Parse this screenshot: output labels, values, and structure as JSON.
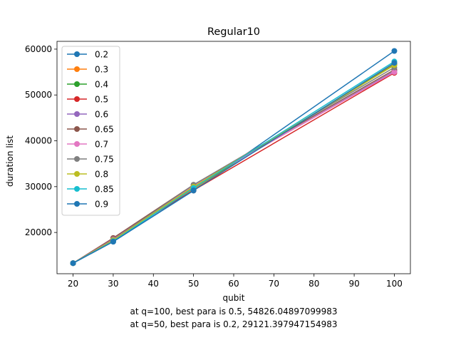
{
  "chart_data": {
    "type": "line",
    "title": "Regular10",
    "xlabel": "qubit",
    "ylabel": "duration list",
    "x": [
      20,
      30,
      50,
      100
    ],
    "xlim": [
      16,
      104
    ],
    "ylim": [
      11000,
      61700
    ],
    "xticks": [
      20,
      30,
      40,
      50,
      60,
      70,
      80,
      90,
      100
    ],
    "yticks": [
      20000,
      30000,
      40000,
      50000,
      60000
    ],
    "grid": false,
    "legend_position": "top-left",
    "series": [
      {
        "name": "0.2",
        "color": "#1f77b4",
        "values": [
          13300,
          18000,
          29121,
          59600
        ]
      },
      {
        "name": "0.3",
        "color": "#ff7f0e",
        "values": [
          13300,
          18500,
          29400,
          56900
        ]
      },
      {
        "name": "0.4",
        "color": "#2ca02c",
        "values": [
          13300,
          18600,
          29700,
          56600
        ]
      },
      {
        "name": "0.5",
        "color": "#d62728",
        "values": [
          13300,
          18700,
          29200,
          54826
        ]
      },
      {
        "name": "0.6",
        "color": "#9467bd",
        "values": [
          13300,
          18600,
          30100,
          55200
        ]
      },
      {
        "name": "0.65",
        "color": "#8c564b",
        "values": [
          13300,
          18800,
          30400,
          55500
        ]
      },
      {
        "name": "0.7",
        "color": "#e377c2",
        "values": [
          13300,
          18500,
          30200,
          55000
        ]
      },
      {
        "name": "0.75",
        "color": "#7f7f7f",
        "values": [
          13300,
          18400,
          30400,
          56000
        ]
      },
      {
        "name": "0.8",
        "color": "#bcbd22",
        "values": [
          13300,
          18300,
          30000,
          56500
        ]
      },
      {
        "name": "0.85",
        "color": "#17becf",
        "values": [
          13300,
          18100,
          29700,
          57300
        ]
      },
      {
        "name": "0.9",
        "color": "#1f77b4",
        "values": [
          13300,
          18000,
          29200,
          57000
        ]
      }
    ],
    "annotations": [
      "at q=100, best para is 0.5, 54826.04897099983",
      "at q=50, best para is 0.2, 29121.397947154983"
    ]
  }
}
